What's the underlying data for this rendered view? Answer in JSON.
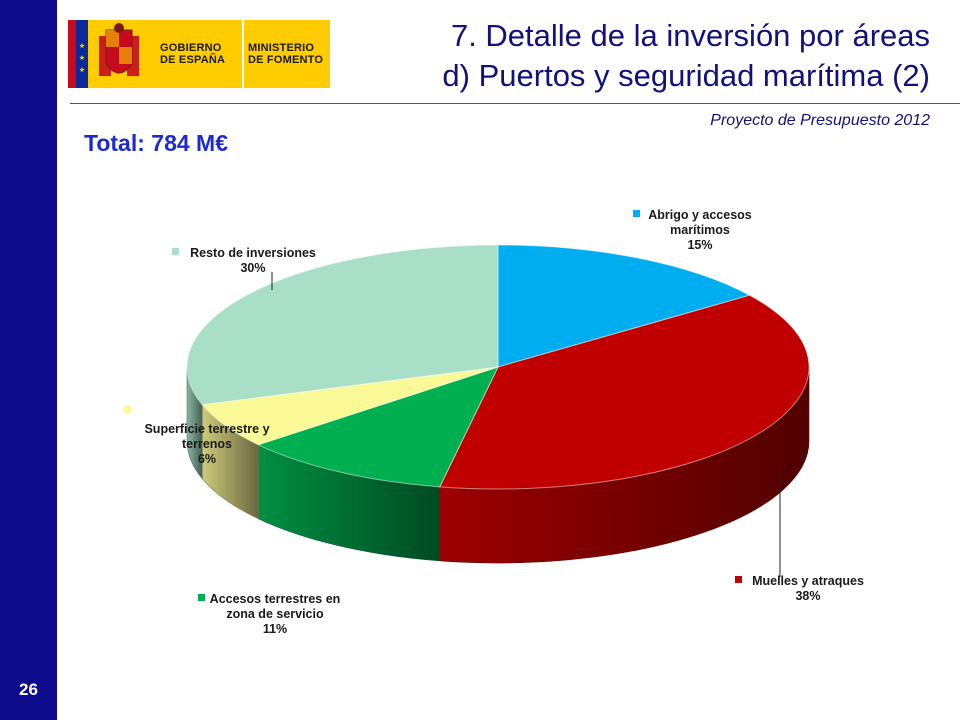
{
  "page": {
    "number": "26"
  },
  "logo": {
    "line1": "GOBIERNO",
    "line2": "DE ESPAÑA",
    "line3": "MINISTERIO",
    "line4": "DE FOMENTO"
  },
  "header": {
    "title_line1": "7. Detalle de la inversión por áreas",
    "title_line2": "d) Puertos y seguridad marítima (2)",
    "subtitle": "Proyecto de Presupuesto 2012"
  },
  "total": {
    "label": "Total: 784 M€"
  },
  "colors": {
    "sidebar": "#0b0b8c",
    "title": "#11117a",
    "total": "#1c2bd1"
  },
  "chart_data": {
    "type": "pie",
    "title": "",
    "units": "%",
    "slices": [
      {
        "name": "Abrigo y accesos marítimos",
        "label_lines": [
          "Abrigo y accesos",
          "marítimos"
        ],
        "value": 15,
        "value_label": "15%",
        "color": "#00aeef"
      },
      {
        "name": "Muelles y atraques",
        "label_lines": [
          "Muelles y atraques"
        ],
        "value": 38,
        "value_label": "38%",
        "color": "#c00000"
      },
      {
        "name": "Accesos terrestres en zona de servicio",
        "label_lines": [
          "Accesos terrestres en",
          "zona de servicio"
        ],
        "value": 11,
        "value_label": "11%",
        "color": "#00b050"
      },
      {
        "name": "Superficie terrestre y terrenos",
        "label_lines": [
          "Superficie terrestre y",
          "terrenos"
        ],
        "value": 6,
        "value_label": "6%",
        "color": "#fbf896"
      },
      {
        "name": "Resto de inversiones",
        "label_lines": [
          "Resto de inversiones"
        ],
        "value": 30,
        "value_label": "30%",
        "color": "#a9dfc6"
      }
    ]
  }
}
